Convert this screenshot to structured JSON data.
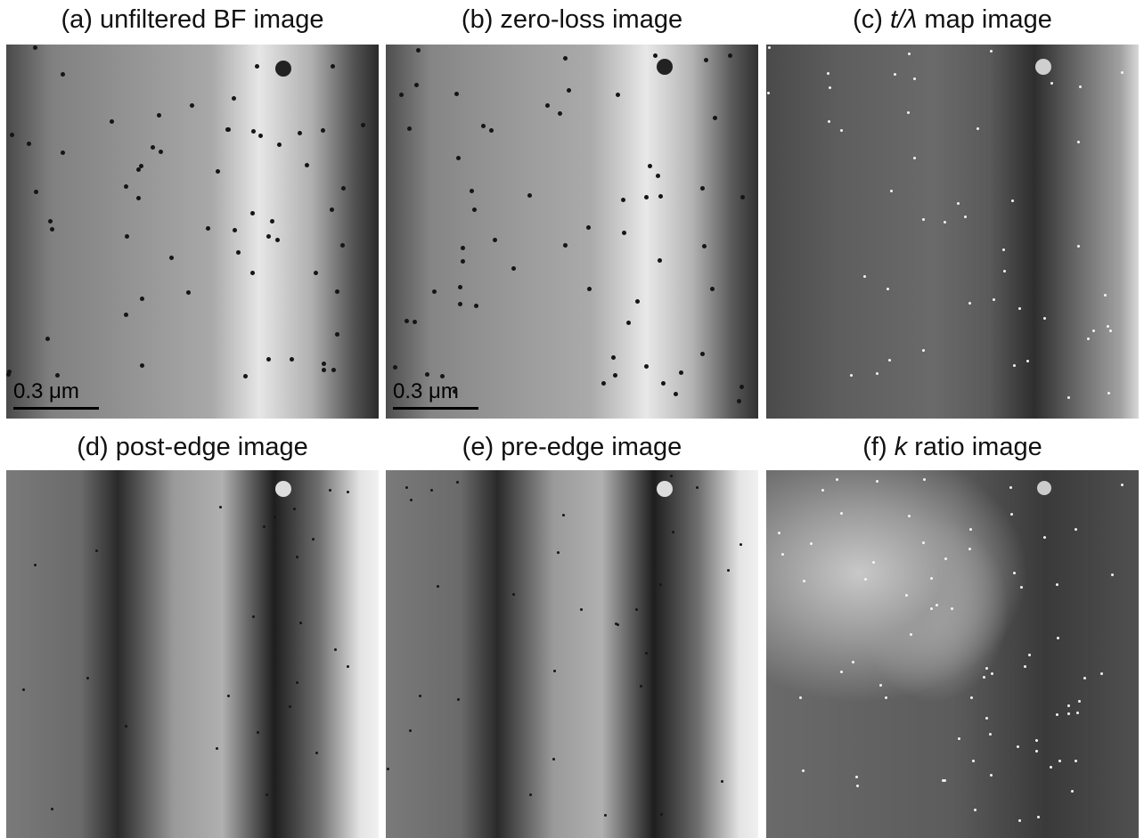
{
  "panels": [
    {
      "title_parts": [
        {
          "text": "(a) unfiltered BF image"
        }
      ],
      "scale_bar": "0.3 μm"
    },
    {
      "title_parts": [
        {
          "text": "(b) zero-loss image"
        }
      ],
      "scale_bar": "0.3 μm"
    },
    {
      "title_parts": [
        {
          "text": "(c) "
        },
        {
          "text": "t/λ",
          "italic": true
        },
        {
          "text": " map image"
        }
      ]
    },
    {
      "title_parts": [
        {
          "text": "(d) post-edge image"
        }
      ]
    },
    {
      "title_parts": [
        {
          "text": "(e) pre-edge image"
        }
      ]
    },
    {
      "title_parts": [
        {
          "text": "(f) "
        },
        {
          "text": "k",
          "italic": true
        },
        {
          "text": " ratio image"
        }
      ]
    }
  ]
}
